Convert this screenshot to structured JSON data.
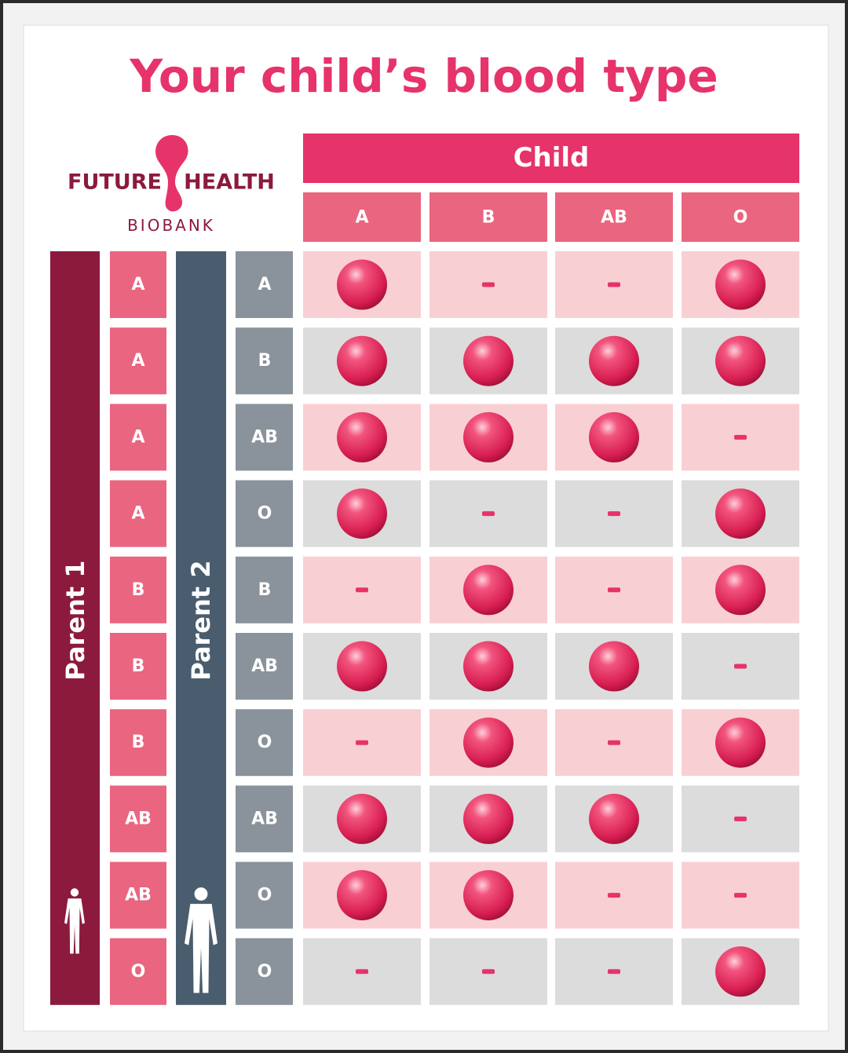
{
  "title": "Your child’s blood type",
  "logo": {
    "word1": "FUTURE",
    "word2": "HEALTH",
    "word3": "BIOBANK"
  },
  "table": {
    "child_header": "Child",
    "columns": [
      "A",
      "B",
      "AB",
      "O"
    ],
    "parent1_label": "Parent 1",
    "parent2_label": "Parent 2",
    "rows": [
      {
        "parent1": "A",
        "parent2": "A",
        "possible": [
          true,
          false,
          false,
          true
        ]
      },
      {
        "parent1": "A",
        "parent2": "B",
        "possible": [
          true,
          true,
          true,
          true
        ]
      },
      {
        "parent1": "A",
        "parent2": "AB",
        "possible": [
          true,
          true,
          true,
          false
        ]
      },
      {
        "parent1": "A",
        "parent2": "O",
        "possible": [
          true,
          false,
          false,
          true
        ]
      },
      {
        "parent1": "B",
        "parent2": "B",
        "possible": [
          false,
          true,
          false,
          true
        ]
      },
      {
        "parent1": "B",
        "parent2": "AB",
        "possible": [
          true,
          true,
          true,
          false
        ]
      },
      {
        "parent1": "B",
        "parent2": "O",
        "possible": [
          false,
          true,
          false,
          true
        ]
      },
      {
        "parent1": "AB",
        "parent2": "AB",
        "possible": [
          true,
          true,
          true,
          false
        ]
      },
      {
        "parent1": "AB",
        "parent2": "O",
        "possible": [
          true,
          true,
          false,
          false
        ]
      },
      {
        "parent1": "O",
        "parent2": "O",
        "possible": [
          false,
          false,
          false,
          true
        ]
      }
    ]
  }
}
